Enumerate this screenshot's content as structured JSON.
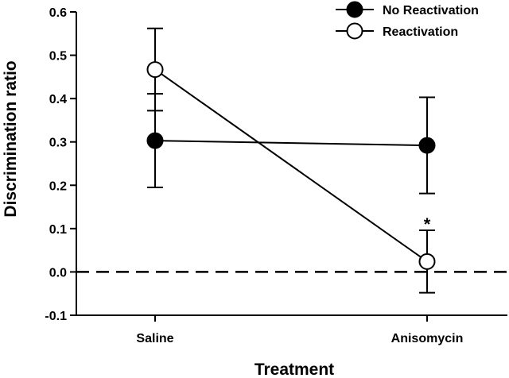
{
  "chart_data": {
    "type": "line",
    "categories": [
      "Saline",
      "Anisomycin"
    ],
    "series": [
      {
        "name": "No Reactivation",
        "marker": "filled-circle",
        "color": "#000000",
        "values": [
          0.303,
          0.292
        ],
        "error_bars": [
          0.108,
          0.111
        ]
      },
      {
        "name": "Reactivation",
        "marker": "open-circle",
        "color": "#000000",
        "values": [
          0.467,
          0.024
        ],
        "error_bars": [
          0.095,
          0.072
        ]
      }
    ],
    "xlabel": "Treatment",
    "ylabel": "Discrimination ratio",
    "ylim": [
      -0.1,
      0.6
    ],
    "yticks": [
      "-0.1",
      "0.0",
      "0.1",
      "0.2",
      "0.3",
      "0.4",
      "0.5",
      "0.6"
    ],
    "reference_line": {
      "y": 0.0,
      "style": "dashed"
    },
    "annotations": [
      {
        "text": "*",
        "category": "Anisomycin",
        "y": 0.125
      }
    ],
    "legend": {
      "placement": "top-right"
    },
    "grid": false
  }
}
